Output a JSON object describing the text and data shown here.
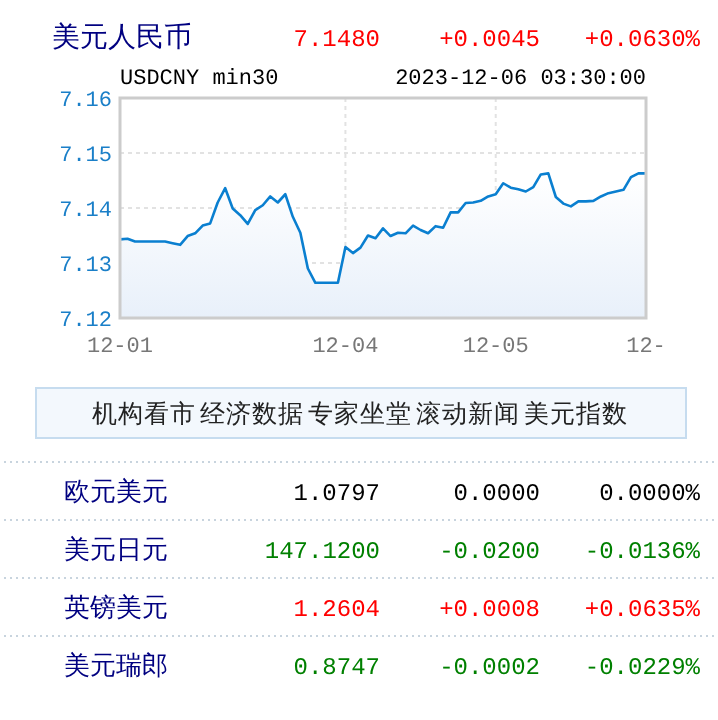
{
  "chart_data": [
    {
      "type": "other",
      "title": "美元人民币",
      "annotations": [
        "7.1480",
        "+0.0045",
        "+0.0630%"
      ],
      "colors": [
        "#ff0000",
        "#ff0000",
        "#ff0000"
      ]
    },
    {
      "type": "area",
      "subtitle": "USDCNY min30",
      "annotations": [
        "2023-12-06 03:30:00"
      ],
      "categories": [
        "12-01",
        null,
        null,
        null,
        null,
        null,
        null,
        null,
        null,
        null,
        null,
        null,
        null,
        null,
        null,
        null,
        null,
        null,
        null,
        null,
        null,
        null,
        null,
        null,
        null,
        null,
        null,
        null,
        null,
        null,
        "12-04",
        null,
        null,
        null,
        null,
        null,
        null,
        null,
        null,
        null,
        null,
        null,
        null,
        null,
        null,
        null,
        null,
        null,
        null,
        null,
        "12-05",
        null,
        null,
        null,
        null,
        null,
        null,
        null,
        null,
        null,
        null,
        null,
        null,
        null,
        null,
        null,
        null,
        null,
        null,
        null,
        "12-"
      ],
      "series": [
        {
          "color": "#0a7fd0",
          "values": [
            7.1343,
            7.1344,
            7.1339,
            7.1339,
            7.1339,
            7.1339,
            7.1339,
            7.1336,
            7.1333,
            7.1349,
            7.1354,
            7.1368,
            7.1372,
            7.141,
            7.1436,
            7.1399,
            7.1387,
            7.1371,
            7.1396,
            7.1405,
            7.1421,
            7.141,
            7.1425,
            7.1384,
            7.1355,
            7.129,
            7.1264,
            7.1264,
            7.1264,
            7.1264,
            7.1329,
            7.1318,
            7.1328,
            7.135,
            7.1345,
            7.1363,
            7.1349,
            7.1355,
            7.1354,
            7.1368,
            7.136,
            7.1354,
            7.1367,
            7.1364,
            7.1392,
            7.1392,
            7.1409,
            7.141,
            7.1413,
            7.1421,
            7.1425,
            7.1445,
            7.1437,
            7.1434,
            7.143,
            7.1438,
            7.1461,
            7.1463,
            7.142,
            7.1408,
            7.1403,
            7.1412,
            7.1412,
            7.1413,
            7.1421,
            7.1427,
            7.143,
            7.1433,
            7.1456,
            7.1463,
            7.1463
          ]
        }
      ],
      "ylim": [
        7.12,
        7.16
      ],
      "yticks": [
        7.12,
        7.13,
        7.14,
        7.15,
        7.16
      ],
      "grid": true
    },
    {
      "type": "other",
      "annotations": [
        "机构看市",
        "经济数据",
        "专家坐堂",
        "滚动新闻",
        "美元指数"
      ],
      "colors": [
        "#222222",
        "#222222",
        "#222222",
        "#222222",
        "#222222"
      ]
    },
    {
      "type": "other",
      "y_categories": [
        "欧元美元",
        "美元日元",
        "英镑美元",
        "美元瑞郎"
      ],
      "annotations": [
        "1.0797",
        "0.0000",
        "0.0000%",
        "147.1200",
        "-0.0200",
        "-0.0136%",
        "1.2604",
        "+0.0008",
        "+0.0635%",
        "0.8747",
        "-0.0002",
        "-0.0229%"
      ],
      "colors": [
        "#000000",
        "#000000",
        "#000000",
        "#008000",
        "#008000",
        "#008000",
        "#ff0000",
        "#ff0000",
        "#ff0000",
        "#008000",
        "#008000",
        "#008000"
      ]
    }
  ]
}
